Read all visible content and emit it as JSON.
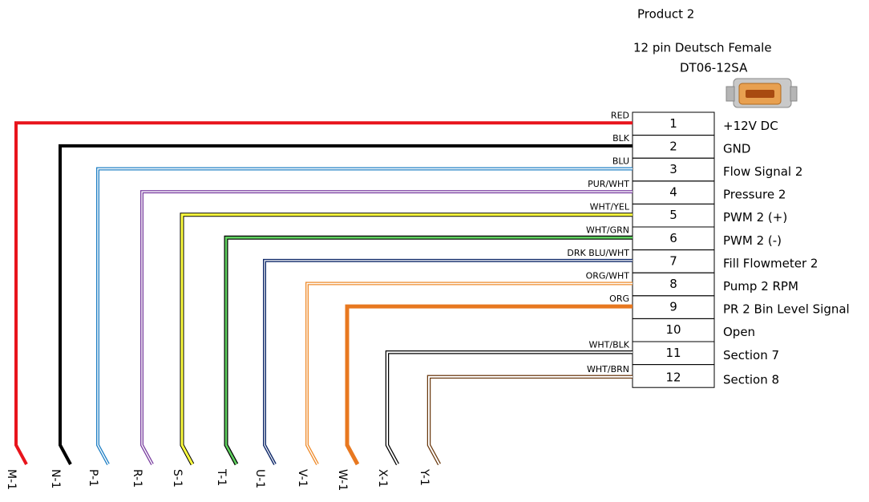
{
  "header": {
    "title": "Product 2",
    "connector": "12 pin Deutsch Female",
    "part": "DT06-12SA"
  },
  "pins": [
    {
      "number": "1",
      "signal": "+12V DC",
      "wire": "RED",
      "end": "M-1"
    },
    {
      "number": "2",
      "signal": "GND",
      "wire": "BLK",
      "end": "N-1"
    },
    {
      "number": "3",
      "signal": "Flow Signal 2",
      "wire": "BLU",
      "end": "P-1"
    },
    {
      "number": "4",
      "signal": "Pressure 2",
      "wire": "PUR/WHT",
      "end": "R-1"
    },
    {
      "number": "5",
      "signal": "PWM 2 (+)",
      "wire": "WHT/YEL",
      "end": "S-1"
    },
    {
      "number": "6",
      "signal": "PWM 2 (-)",
      "wire": "WHT/GRN",
      "end": "T-1"
    },
    {
      "number": "7",
      "signal": "Fill Flowmeter 2",
      "wire": "DRK BLU/WHT",
      "end": "U-1"
    },
    {
      "number": "8",
      "signal": "Pump 2 RPM",
      "wire": "ORG/WHT",
      "end": "V-1"
    },
    {
      "number": "9",
      "signal": "PR 2 Bin Level Signal",
      "wire": "ORG",
      "end": "W-1"
    },
    {
      "number": "10",
      "signal": "Open"
    },
    {
      "number": "11",
      "signal": "Section 7",
      "wire": "WHT/BLK",
      "end": "X-1"
    },
    {
      "number": "12",
      "signal": "Section 8",
      "wire": "WHT/BRN",
      "end": "Y-1"
    }
  ]
}
